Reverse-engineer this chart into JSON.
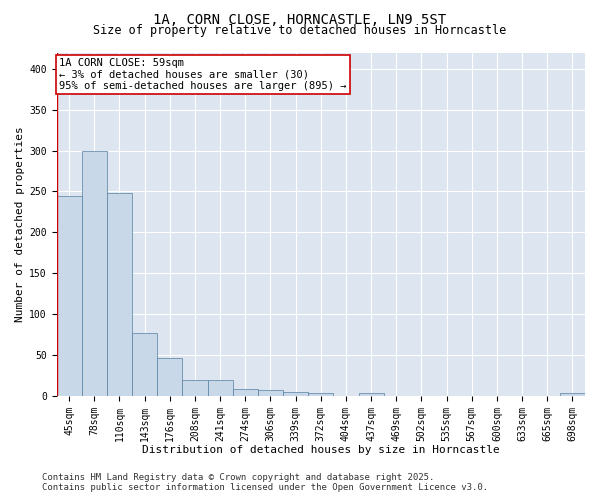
{
  "title": "1A, CORN CLOSE, HORNCASTLE, LN9 5ST",
  "subtitle": "Size of property relative to detached houses in Horncastle",
  "xlabel": "Distribution of detached houses by size in Horncastle",
  "ylabel": "Number of detached properties",
  "categories": [
    "45sqm",
    "78sqm",
    "110sqm",
    "143sqm",
    "176sqm",
    "208sqm",
    "241sqm",
    "274sqm",
    "306sqm",
    "339sqm",
    "372sqm",
    "404sqm",
    "437sqm",
    "469sqm",
    "502sqm",
    "535sqm",
    "567sqm",
    "600sqm",
    "633sqm",
    "665sqm",
    "698sqm"
  ],
  "values": [
    245,
    300,
    248,
    77,
    46,
    20,
    20,
    9,
    7,
    5,
    4,
    0,
    3,
    0,
    0,
    0,
    0,
    0,
    0,
    0,
    3
  ],
  "bar_color": "#c8d8e8",
  "bar_edge_color": "#5580a0",
  "background_color": "#dde6f0",
  "grid_color": "#ffffff",
  "fig_background_color": "#ffffff",
  "annotation_text": "1A CORN CLOSE: 59sqm\n← 3% of detached houses are smaller (30)\n95% of semi-detached houses are larger (895) →",
  "annotation_box_color": "#ffffff",
  "annotation_box_edge_color": "#cc0000",
  "ylim": [
    0,
    420
  ],
  "yticks": [
    0,
    50,
    100,
    150,
    200,
    250,
    300,
    350,
    400
  ],
  "footer": "Contains HM Land Registry data © Crown copyright and database right 2025.\nContains public sector information licensed under the Open Government Licence v3.0.",
  "title_fontsize": 10,
  "subtitle_fontsize": 8.5,
  "xlabel_fontsize": 8,
  "ylabel_fontsize": 8,
  "tick_fontsize": 7,
  "annotation_fontsize": 7.5,
  "footer_fontsize": 6.5
}
